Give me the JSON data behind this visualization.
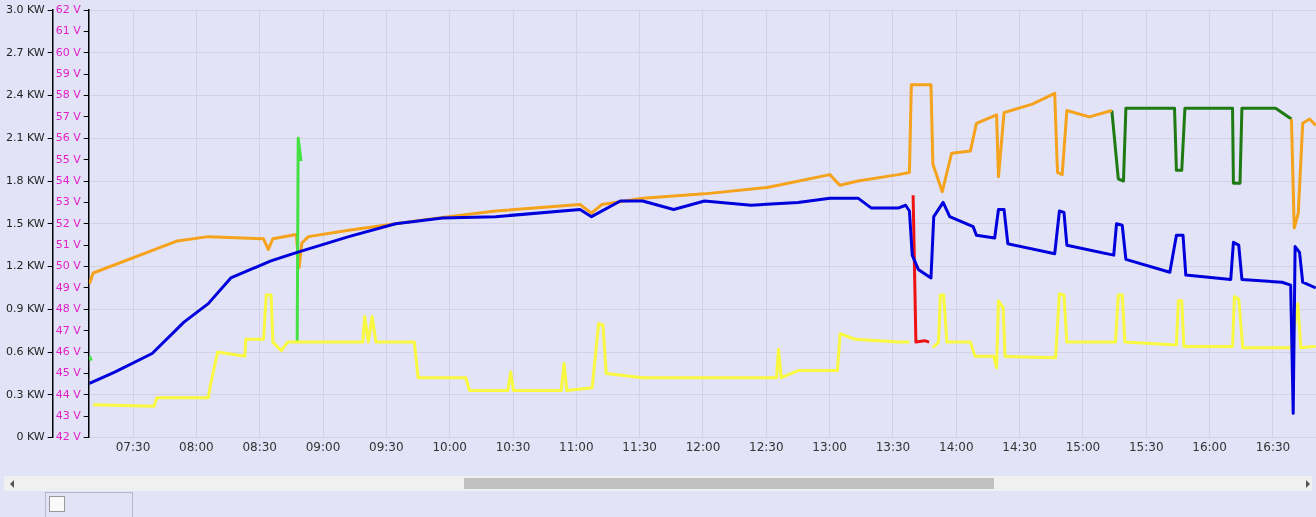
{
  "chart_data": {
    "type": "line",
    "xlim": [
      7.15,
      16.84
    ],
    "xticks": [
      {
        "value": 7.5,
        "label": "07:30"
      },
      {
        "value": 8,
        "label": "08:00"
      },
      {
        "value": 8.5,
        "label": "08:30"
      },
      {
        "value": 9,
        "label": "09:00"
      },
      {
        "value": 9.5,
        "label": "09:30"
      },
      {
        "value": 10,
        "label": "10:00"
      },
      {
        "value": 10.5,
        "label": "10:30"
      },
      {
        "value": 11,
        "label": "11:00"
      },
      {
        "value": 11.5,
        "label": "11:30"
      },
      {
        "value": 12,
        "label": "12:00"
      },
      {
        "value": 12.5,
        "label": "12:30"
      },
      {
        "value": 13,
        "label": "13:00"
      },
      {
        "value": 13.5,
        "label": "13:30"
      },
      {
        "value": 14,
        "label": "14:00"
      },
      {
        "value": 14.5,
        "label": "14:30"
      },
      {
        "value": 15,
        "label": "15:00"
      },
      {
        "value": 15.5,
        "label": "15:30"
      },
      {
        "value": 16,
        "label": "16:00"
      },
      {
        "value": 16.5,
        "label": "16:30"
      }
    ],
    "ylim": [
      0,
      3
    ],
    "yticks": [
      {
        "value": 0,
        "label": "0 KW"
      },
      {
        "value": 0.3,
        "label": "0.3 KW"
      },
      {
        "value": 0.6,
        "label": "0.6 KW"
      },
      {
        "value": 0.9,
        "label": "0.9 KW"
      },
      {
        "value": 1.2,
        "label": "1.2 KW"
      },
      {
        "value": 1.5,
        "label": "1.5 KW"
      },
      {
        "value": 1.8,
        "label": "1.8 KW"
      },
      {
        "value": 2.1,
        "label": "2.1 KW"
      },
      {
        "value": 2.4,
        "label": "2.4 KW"
      },
      {
        "value": 2.7,
        "label": "2.7 KW"
      },
      {
        "value": 3,
        "label": "3.0 KW"
      }
    ],
    "y2lim": [
      42,
      62
    ],
    "y2ticks": [
      {
        "value": 42,
        "label": "42 V"
      },
      {
        "value": 43,
        "label": "43 V"
      },
      {
        "value": 44,
        "label": "44 V"
      },
      {
        "value": 45,
        "label": "45 V"
      },
      {
        "value": 46,
        "label": "46 V"
      },
      {
        "value": 47,
        "label": "47 V"
      },
      {
        "value": 48,
        "label": "48 V"
      },
      {
        "value": 49,
        "label": "49 V"
      },
      {
        "value": 50,
        "label": "50 V"
      },
      {
        "value": 51,
        "label": "51 V"
      },
      {
        "value": 52,
        "label": "52 V"
      },
      {
        "value": 53,
        "label": "53 V"
      },
      {
        "value": 54,
        "label": "54 V"
      },
      {
        "value": 55,
        "label": "55 V"
      },
      {
        "value": 56,
        "label": "56 V"
      },
      {
        "value": 57,
        "label": "57 V"
      },
      {
        "value": 58,
        "label": "58 V"
      },
      {
        "value": 59,
        "label": "59 V"
      },
      {
        "value": 60,
        "label": "60 V"
      },
      {
        "value": 61,
        "label": "61 V"
      },
      {
        "value": 62,
        "label": "62 V"
      }
    ],
    "grid": true,
    "legend": false,
    "series": [
      {
        "color": "#f5a21c",
        "axis": "y2",
        "x": [
          7.156,
          7.185,
          7.85,
          8.094,
          8.53,
          8.568,
          8.604,
          8.789,
          8.811,
          8.833,
          8.885,
          9.203,
          9.573,
          9.943,
          10.363,
          11.029,
          11.12,
          11.2,
          11.524,
          12.012,
          12.507,
          13.002,
          13.08,
          13.224,
          13.541,
          13.63,
          13.645,
          13.8,
          13.815,
          13.889,
          13.963,
          14.111,
          14.159,
          14.318,
          14.333,
          14.377,
          14.6,
          14.777,
          14.799,
          14.836,
          14.873,
          15.05,
          15.228,
          15.8,
          16.646,
          16.668,
          16.7,
          16.735,
          16.79,
          16.838
        ],
        "values": [
          49.2,
          49.7,
          51.2,
          51.4,
          51.3,
          50.8,
          51.3,
          51.5,
          49.95,
          51.1,
          51.4,
          51.7,
          52.0,
          52.3,
          52.6,
          52.9,
          52.5,
          52.9,
          53.2,
          53.4,
          53.7,
          54.3,
          53.8,
          54.0,
          54.3,
          54.4,
          58.5,
          58.5,
          54.8,
          53.5,
          55.3,
          55.4,
          56.7,
          57.1,
          54.2,
          57.2,
          57.6,
          58.1,
          54.4,
          54.3,
          57.3,
          57.0,
          57.3,
          null,
          56.9,
          51.8,
          52.5,
          56.7,
          56.9,
          56.6
        ]
      },
      {
        "color": "#1e7a12",
        "axis": "y2",
        "x": [
          15.228,
          15.279,
          15.32,
          15.339,
          15.723,
          15.738,
          15.78,
          15.805,
          16.181,
          16.188,
          16.24,
          16.255,
          16.521,
          16.646
        ],
        "values": [
          57.3,
          54.1,
          54.0,
          57.4,
          57.4,
          54.5,
          54.5,
          57.4,
          57.4,
          53.9,
          53.9,
          57.4,
          57.4,
          56.9
        ]
      },
      {
        "color": "#0000dd",
        "x": [
          7.156,
          7.355,
          7.651,
          7.902,
          8.094,
          8.272,
          8.589,
          8.796,
          9.203,
          9.573,
          9.943,
          10.363,
          11.029,
          11.12,
          11.347,
          11.524,
          11.768,
          12.012,
          12.381,
          12.75,
          13.002,
          13.224,
          13.33,
          13.541,
          13.6,
          13.63,
          13.652,
          13.7,
          13.8,
          13.822,
          13.896,
          13.948,
          14.133,
          14.159,
          14.303,
          14.333,
          14.377,
          14.407,
          14.777,
          14.814,
          14.85,
          14.873,
          15.243,
          15.265,
          15.31,
          15.339,
          15.686,
          15.738,
          15.79,
          15.812,
          16.167,
          16.188,
          16.23,
          16.255,
          16.572,
          16.64,
          16.66,
          16.675,
          16.71,
          16.735,
          16.838
        ],
        "values": [
          0.38,
          0.46,
          0.59,
          0.81,
          0.94,
          1.12,
          1.24,
          1.3,
          1.41,
          1.5,
          1.54,
          1.55,
          1.6,
          1.55,
          1.66,
          1.66,
          1.6,
          1.66,
          1.63,
          1.65,
          1.68,
          1.68,
          1.61,
          1.61,
          1.63,
          1.59,
          1.28,
          1.18,
          1.12,
          1.55,
          1.65,
          1.55,
          1.48,
          1.42,
          1.4,
          1.6,
          1.6,
          1.36,
          1.29,
          1.59,
          1.58,
          1.35,
          1.28,
          1.5,
          1.49,
          1.25,
          1.16,
          1.42,
          1.42,
          1.14,
          1.11,
          1.37,
          1.35,
          1.11,
          1.09,
          1.07,
          0.17,
          1.34,
          1.3,
          1.09,
          1.05
        ]
      },
      {
        "color": "#f8f840",
        "x": [
          7.185,
          7.666,
          7.688,
          8.094,
          8.109,
          8.168,
          8.382,
          8.39,
          8.53,
          8.552,
          8.59,
          8.604,
          8.67,
          8.72,
          9.314,
          9.329,
          9.358,
          9.388,
          9.418,
          9.721,
          9.751,
          10.127,
          10.157,
          10.459,
          10.482,
          10.504,
          10.881,
          10.903,
          10.925,
          11.125,
          11.176,
          11.21,
          11.236,
          11.524,
          12.581,
          12.596,
          12.618,
          12.751,
          13.061,
          13.083,
          13.2,
          13.541,
          13.63,
          13.7,
          13.815,
          13.86,
          13.874,
          13.9,
          13.926,
          14.111,
          14.148,
          14.296,
          14.318,
          14.333,
          14.37,
          14.385,
          14.784,
          14.814,
          14.85,
          14.873,
          15.257,
          15.279,
          15.31,
          15.331,
          15.738,
          15.753,
          15.78,
          15.797,
          16.181,
          16.196,
          16.23,
          16.262,
          16.646,
          16.697,
          16.72,
          16.838
        ],
        "values": [
          0.23,
          0.22,
          0.28,
          0.28,
          0.36,
          0.6,
          0.57,
          0.69,
          0.69,
          1.0,
          1.0,
          0.67,
          0.61,
          0.67,
          0.67,
          0.85,
          0.67,
          0.85,
          0.67,
          0.67,
          0.42,
          0.42,
          0.33,
          0.33,
          0.46,
          0.33,
          0.33,
          0.52,
          0.33,
          0.35,
          0.8,
          0.79,
          0.45,
          0.42,
          0.42,
          0.62,
          0.42,
          0.47,
          0.47,
          0.73,
          0.69,
          0.67,
          0.67,
          null,
          0.63,
          0.67,
          1.0,
          1.0,
          0.67,
          0.67,
          0.57,
          0.57,
          0.49,
          0.96,
          0.91,
          0.57,
          0.56,
          1.01,
          1.0,
          0.67,
          0.67,
          1.0,
          1.0,
          0.67,
          0.65,
          0.96,
          0.96,
          0.64,
          0.64,
          0.99,
          0.97,
          0.63,
          0.63,
          0.94,
          0.63,
          0.64
        ]
      },
      {
        "color": "#ee1111",
        "x": [
          13.659,
          13.681,
          13.75,
          13.785
        ],
        "values": [
          1.7,
          0.67,
          0.68,
          0.67
        ]
      },
      {
        "color": "#44e044",
        "x": [
          7.156,
          7.17,
          8.0,
          8.796,
          8.804,
          8.826
        ],
        "values": [
          0.57,
          0.54,
          null,
          0.67,
          2.1,
          1.94
        ]
      }
    ]
  }
}
